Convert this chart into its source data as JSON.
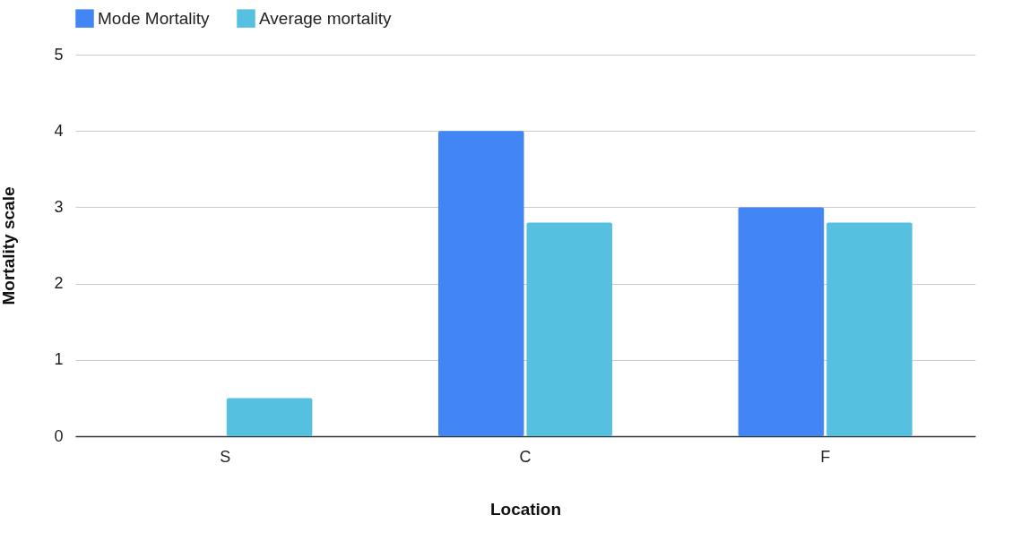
{
  "chart_data": {
    "type": "bar",
    "xlabel": "Location",
    "ylabel": "Mortality scale",
    "categories": [
      "S",
      "C",
      "F"
    ],
    "series": [
      {
        "name": "Mode Mortality",
        "color": "#4285f4",
        "values": [
          0,
          4,
          3
        ]
      },
      {
        "name": "Average mortality",
        "color": "#56c0e0",
        "values": [
          0.5,
          2.8,
          2.8
        ]
      }
    ],
    "ylim": [
      0,
      5
    ],
    "yticks": [
      0,
      1,
      2,
      3,
      4,
      5
    ],
    "grid": "y",
    "legend": "top"
  }
}
